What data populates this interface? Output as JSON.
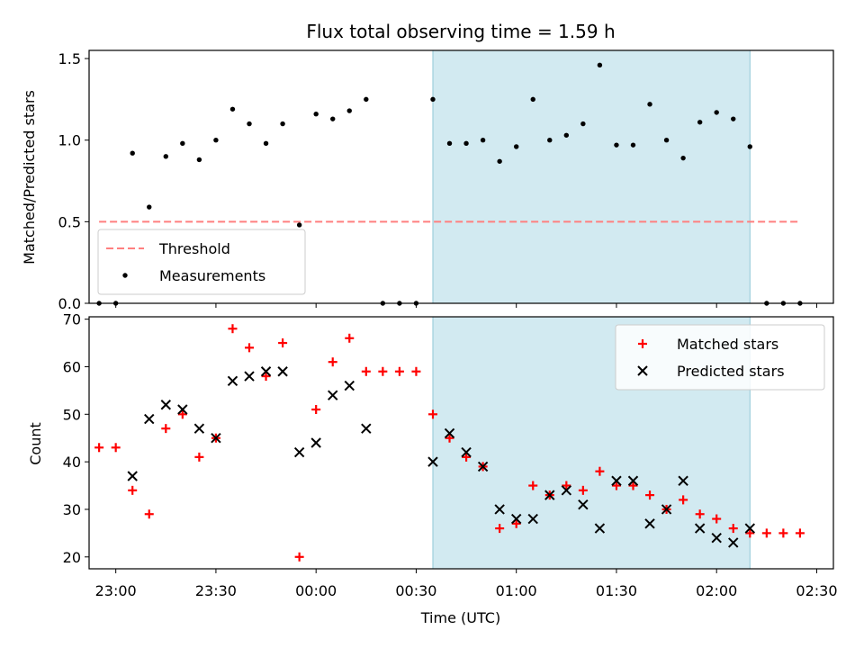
{
  "chart_data": [
    {
      "type": "scatter",
      "title": "Flux total observing time = 1.59 h",
      "xlabel": "",
      "ylabel": "Matched/Predicted stars",
      "ylim": [
        0,
        1.55
      ],
      "xlim": [
        "22:52",
        "02:35"
      ],
      "yticks": [
        "0.0",
        "0.5",
        "1.0",
        "1.5"
      ],
      "highlight_band": {
        "x": [
          "00:35",
          "02:10"
        ],
        "color": "#add8e6"
      },
      "legend": {
        "position": "lower-left",
        "entries": [
          {
            "label": "Threshold",
            "marker": "dashed-line",
            "color": "#ff7f7f"
          },
          {
            "label": "Measurements",
            "marker": "dot",
            "color": "#000000"
          }
        ]
      },
      "series": [
        {
          "name": "Threshold",
          "kind": "line",
          "style": "dashed",
          "color": "#ff7f7f",
          "x": [
            "22:55",
            "02:25"
          ],
          "y": [
            0.5,
            0.5
          ]
        },
        {
          "name": "Measurements",
          "kind": "dot",
          "color": "#000000",
          "x": [
            "22:55",
            "23:00",
            "23:05",
            "23:10",
            "23:15",
            "23:20",
            "23:25",
            "23:30",
            "23:35",
            "23:40",
            "23:45",
            "23:50",
            "23:55",
            "00:00",
            "00:05",
            "00:10",
            "00:15",
            "00:20",
            "00:25",
            "00:30",
            "00:35",
            "00:40",
            "00:45",
            "00:50",
            "00:55",
            "01:00",
            "01:05",
            "01:10",
            "01:15",
            "01:20",
            "01:25",
            "01:30",
            "01:35",
            "01:40",
            "01:45",
            "01:50",
            "01:55",
            "02:00",
            "02:05",
            "02:10",
            "02:15",
            "02:20",
            "02:25"
          ],
          "y": [
            0.0,
            0.0,
            0.92,
            0.59,
            0.9,
            0.98,
            0.88,
            1.0,
            1.19,
            1.1,
            0.98,
            1.1,
            0.48,
            1.16,
            1.13,
            1.18,
            1.25,
            0.0,
            0.0,
            0.0,
            1.25,
            0.98,
            0.98,
            1.0,
            0.87,
            0.96,
            1.25,
            1.0,
            1.03,
            1.1,
            1.46,
            0.97,
            0.97,
            1.22,
            1.0,
            0.89,
            1.11,
            1.17,
            1.13,
            0.96,
            0.0,
            0.0,
            0.0
          ]
        }
      ]
    },
    {
      "type": "scatter",
      "title": "",
      "xlabel": "Time (UTC)",
      "ylabel": "Count",
      "ylim": [
        17.5,
        70.5
      ],
      "xlim": [
        "22:52",
        "02:35"
      ],
      "xticks": [
        "23:00",
        "23:30",
        "00:00",
        "00:30",
        "01:00",
        "01:30",
        "02:00",
        "02:30"
      ],
      "yticks": [
        "20",
        "30",
        "40",
        "50",
        "60",
        "70"
      ],
      "highlight_band": {
        "x": [
          "00:35",
          "02:10"
        ],
        "color": "#add8e6"
      },
      "legend": {
        "position": "top-right",
        "entries": [
          {
            "label": "Matched stars",
            "marker": "plus",
            "color": "#ff0000"
          },
          {
            "label": "Predicted stars",
            "marker": "x",
            "color": "#000000"
          }
        ]
      },
      "series": [
        {
          "name": "Matched stars",
          "kind": "plus",
          "color": "#ff0000",
          "x": [
            "22:55",
            "23:00",
            "23:05",
            "23:10",
            "23:15",
            "23:20",
            "23:25",
            "23:30",
            "23:35",
            "23:40",
            "23:45",
            "23:50",
            "23:55",
            "00:00",
            "00:05",
            "00:10",
            "00:15",
            "00:20",
            "00:25",
            "00:30",
            "00:35",
            "00:40",
            "00:45",
            "00:50",
            "00:55",
            "01:00",
            "01:05",
            "01:10",
            "01:15",
            "01:20",
            "01:25",
            "01:30",
            "01:35",
            "01:40",
            "01:45",
            "01:50",
            "01:55",
            "02:00",
            "02:05",
            "02:10",
            "02:15",
            "02:20",
            "02:25"
          ],
          "y": [
            43,
            43,
            34,
            29,
            47,
            50,
            41,
            45,
            68,
            64,
            58,
            65,
            20,
            51,
            61,
            66,
            59,
            59,
            59,
            59,
            50,
            45,
            41,
            39,
            26,
            27,
            35,
            33,
            35,
            34,
            38,
            35,
            35,
            33,
            30,
            32,
            29,
            28,
            26,
            25,
            25,
            25,
            25
          ]
        },
        {
          "name": "Predicted stars",
          "kind": "x",
          "color": "#000000",
          "x": [
            "23:05",
            "23:10",
            "23:15",
            "23:20",
            "23:25",
            "23:30",
            "23:35",
            "23:40",
            "23:45",
            "23:50",
            "23:55",
            "00:00",
            "00:05",
            "00:10",
            "00:15",
            "00:35",
            "00:40",
            "00:45",
            "00:50",
            "00:55",
            "01:00",
            "01:05",
            "01:10",
            "01:15",
            "01:20",
            "01:25",
            "01:30",
            "01:35",
            "01:40",
            "01:45",
            "01:50",
            "01:55",
            "02:00",
            "02:05",
            "02:10"
          ],
          "y": [
            37,
            49,
            52,
            51,
            47,
            45,
            57,
            58,
            59,
            59,
            42,
            44,
            54,
            56,
            47,
            40,
            46,
            42,
            39,
            30,
            28,
            28,
            33,
            34,
            31,
            26,
            36,
            36,
            27,
            30,
            36,
            26,
            24,
            23,
            26
          ]
        }
      ]
    }
  ]
}
